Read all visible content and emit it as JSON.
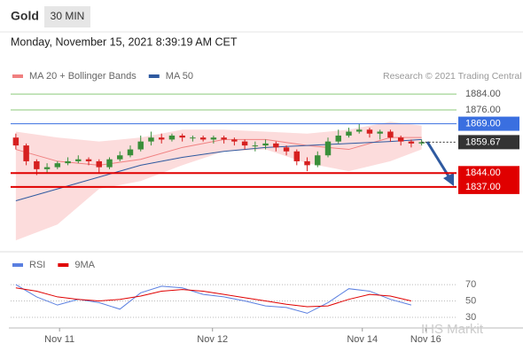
{
  "header": {
    "title": "Gold",
    "timeframe": "30 MIN",
    "timestamp": "Monday, November 15, 2021 8:39:19 AM CET"
  },
  "chart_data": [
    {
      "type": "candlestick",
      "copyright": "Research © 2021 Trading Central",
      "legend": [
        {
          "name": "MA 20 + Bollinger Bands",
          "color": "#f08080"
        },
        {
          "name": "MA 50",
          "color": "#2f5aa0"
        }
      ],
      "ylim": [
        1806,
        1889
      ],
      "xlim": [
        -0.5,
        41.5
      ],
      "up_color": "#3a8f3a",
      "down_color": "#d62020",
      "open": [
        1862,
        1858,
        1850,
        1846,
        1847,
        1849,
        1850,
        1851,
        1850,
        1847,
        1851,
        1853,
        1856,
        1860,
        1862,
        1861,
        1863,
        1862,
        1862,
        1861,
        1862,
        1861,
        1860,
        1858,
        1858,
        1859,
        1857,
        1855,
        1850,
        1848,
        1853,
        1860,
        1863,
        1865,
        1866,
        1864,
        1865,
        1862,
        1860,
        1859
      ],
      "high": [
        1864,
        1859,
        1851,
        1849,
        1850,
        1852,
        1853,
        1852,
        1851,
        1852,
        1855,
        1858,
        1863,
        1865,
        1864,
        1864,
        1864,
        1863,
        1863,
        1863,
        1863,
        1862,
        1861,
        1860,
        1861,
        1860,
        1858,
        1856,
        1852,
        1855,
        1862,
        1866,
        1867,
        1869,
        1867,
        1866,
        1866,
        1863,
        1861,
        1861
      ],
      "low": [
        1856,
        1848,
        1843,
        1844,
        1846,
        1848,
        1849,
        1848,
        1844,
        1846,
        1850,
        1852,
        1855,
        1858,
        1859,
        1860,
        1860,
        1860,
        1860,
        1859,
        1859,
        1858,
        1856,
        1855,
        1856,
        1855,
        1853,
        1848,
        1845,
        1847,
        1852,
        1859,
        1862,
        1864,
        1862,
        1861,
        1860,
        1858,
        1857,
        1858
      ],
      "close": [
        1858,
        1850,
        1846,
        1847,
        1849,
        1850,
        1851,
        1850,
        1847,
        1851,
        1853,
        1856,
        1860,
        1862,
        1861,
        1863,
        1862,
        1862,
        1861,
        1862,
        1861,
        1860,
        1858,
        1858,
        1859,
        1857,
        1855,
        1850,
        1848,
        1853,
        1860,
        1863,
        1865,
        1866,
        1864,
        1865,
        1862,
        1860,
        1859,
        1859.67
      ],
      "bands": {
        "x": [
          0,
          4,
          8,
          12,
          16,
          20,
          24,
          28,
          32,
          36,
          39
        ],
        "upper": [
          1865,
          1862,
          1860,
          1862,
          1866,
          1866,
          1865,
          1864,
          1866,
          1870,
          1868
        ],
        "lower": [
          1810,
          1818,
          1836,
          1840,
          1848,
          1855,
          1856,
          1849,
          1845,
          1850,
          1856
        ],
        "color": "#fbd3d3"
      },
      "series": [
        {
          "name": "MA 20",
          "color": "#f08080",
          "x": [
            0,
            4,
            8,
            12,
            16,
            20,
            24,
            28,
            32,
            36,
            39
          ],
          "values": [
            1856,
            1850,
            1848,
            1851,
            1857,
            1861,
            1861,
            1858,
            1856,
            1862,
            1862
          ]
        },
        {
          "name": "MA 50",
          "color": "#2f5aa0",
          "x": [
            0,
            4,
            8,
            12,
            16,
            20,
            24,
            28,
            32,
            36,
            39
          ],
          "values": [
            1830,
            1836,
            1842,
            1848,
            1852,
            1855,
            1857,
            1858,
            1859,
            1860,
            1861
          ]
        }
      ],
      "levels": [
        {
          "value": 1884,
          "label": "1884.00",
          "color": "#8cc97a",
          "style": "plain"
        },
        {
          "value": 1876,
          "label": "1876.00",
          "color": "#8cc97a",
          "style": "plain"
        },
        {
          "value": 1869,
          "label": "1869.00",
          "color": "#3a6fe0",
          "style": "box"
        },
        {
          "value": 1859.67,
          "label": "1859.67",
          "color": "#333333",
          "style": "current"
        },
        {
          "value": 1844,
          "label": "1844.00",
          "color": "#e00000",
          "style": "box"
        },
        {
          "value": 1837,
          "label": "1837.00",
          "color": "#e00000",
          "style": "box"
        }
      ]
    },
    {
      "type": "line",
      "legend": [
        {
          "name": "RSI",
          "color": "#5a7fe0"
        },
        {
          "name": "9MA",
          "color": "#e00000"
        }
      ],
      "ylim": [
        17,
        82
      ],
      "yticks": [
        70,
        50,
        30
      ],
      "xlim": [
        -0.5,
        41.5
      ],
      "watermark": "IHS Markit",
      "xticks": [
        {
          "value": 4.2,
          "label": "Nov 11"
        },
        {
          "value": 18.9,
          "label": "Nov 12"
        },
        {
          "value": 33.3,
          "label": "Nov 14"
        },
        {
          "value": 39.4,
          "label": "Nov 16"
        }
      ],
      "series": [
        {
          "name": "RSI",
          "color": "#5a7fe0",
          "x": [
            0,
            2,
            4,
            6,
            8,
            10,
            12,
            14,
            16,
            18,
            20,
            22,
            24,
            26,
            28,
            30,
            32,
            34,
            36,
            38
          ],
          "values": [
            70,
            55,
            45,
            52,
            48,
            40,
            60,
            68,
            66,
            58,
            55,
            50,
            44,
            42,
            35,
            48,
            65,
            62,
            52,
            45
          ]
        },
        {
          "name": "9MA",
          "color": "#e00000",
          "x": [
            0,
            2,
            4,
            6,
            8,
            10,
            12,
            14,
            16,
            18,
            20,
            22,
            24,
            26,
            28,
            30,
            32,
            34,
            36,
            38
          ],
          "values": [
            66,
            62,
            55,
            52,
            50,
            52,
            56,
            62,
            64,
            62,
            58,
            54,
            50,
            46,
            43,
            44,
            52,
            58,
            56,
            50
          ]
        }
      ]
    }
  ]
}
